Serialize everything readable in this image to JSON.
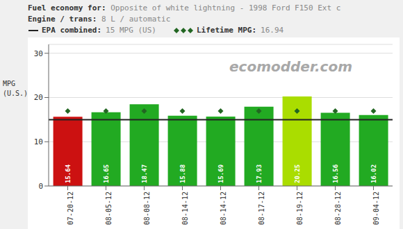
{
  "chart_data": {
    "type": "bar",
    "title": "Fuel economy for:",
    "subtitle": "Opposite of white lightning - 1998 Ford F150 Ext c",
    "annotations": [
      "Engine / trans:",
      "8 L / automatic",
      "EPA combined:",
      "15 MPG (US)",
      "Lifetime MPG:",
      "16.94",
      "ecomodder.com"
    ],
    "ylabel": "MPG (U.S.)",
    "categories": [
      "07-20-12",
      "08-05-12",
      "08-08-12",
      "08-14-12",
      "08-14-12",
      "08-17-12",
      "08-19-12",
      "08-28-12",
      "09-04-12"
    ],
    "values": [
      15.64,
      16.65,
      18.47,
      15.88,
      15.69,
      17.93,
      20.25,
      16.56,
      16.02
    ],
    "colors": [
      "#cc1111",
      "#22aa22",
      "#22aa22",
      "#22aa22",
      "#22aa22",
      "#22aa22",
      "#aadd00",
      "#22aa22",
      "#22aa22"
    ],
    "epa_line": {
      "value": 15,
      "color": "#222222"
    },
    "lifetime_mpg": {
      "value": 16.94,
      "color": "#226622",
      "marker": "diamond"
    },
    "ylim": [
      0,
      32
    ],
    "yticks": [
      0,
      10,
      20,
      30
    ],
    "grid": true,
    "data_labels": true
  }
}
